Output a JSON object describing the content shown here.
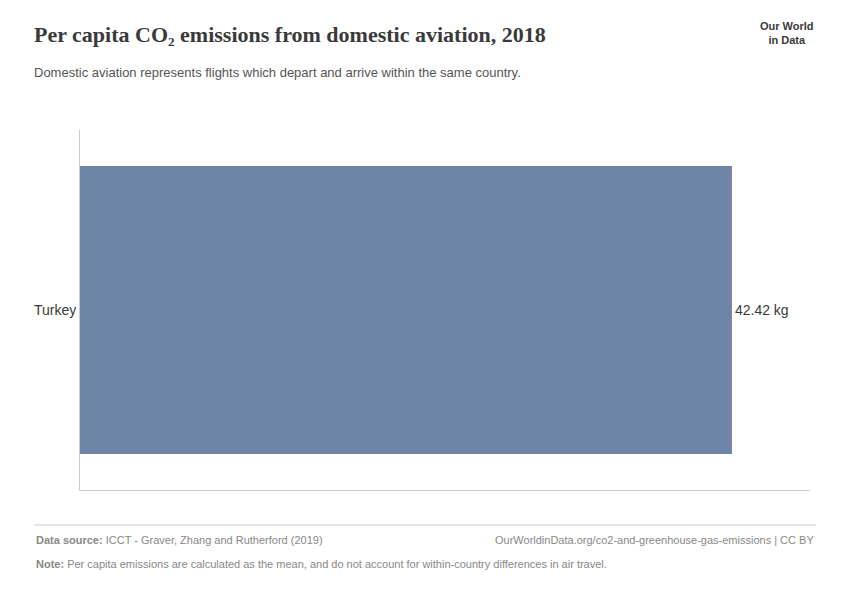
{
  "chart_data": {
    "type": "bar",
    "orientation": "horizontal",
    "title": "Per capita CO₂ emissions from domestic aviation, 2018",
    "subtitle": "Domestic aviation represents flights which depart and arrive within the same country.",
    "categories": [
      "Turkey"
    ],
    "values": [
      42.42
    ],
    "value_labels": [
      "42.42 kg"
    ],
    "data_labels": true,
    "color": "#6e85a8",
    "xlim": [
      0,
      47.5
    ],
    "xticks": [],
    "tick_labels": "y",
    "grid": false,
    "annotations": [
      "Data source: ICCT - Graver, Zhang and Rutherford (2019)",
      "OurWorldinData.org/co2-and-greenhouse-gas-emissions | CC BY",
      "Note: Per capita emissions are calculated as the mean, and do not account for within-country differences in air travel.",
      "Our World",
      "in Data"
    ]
  }
}
